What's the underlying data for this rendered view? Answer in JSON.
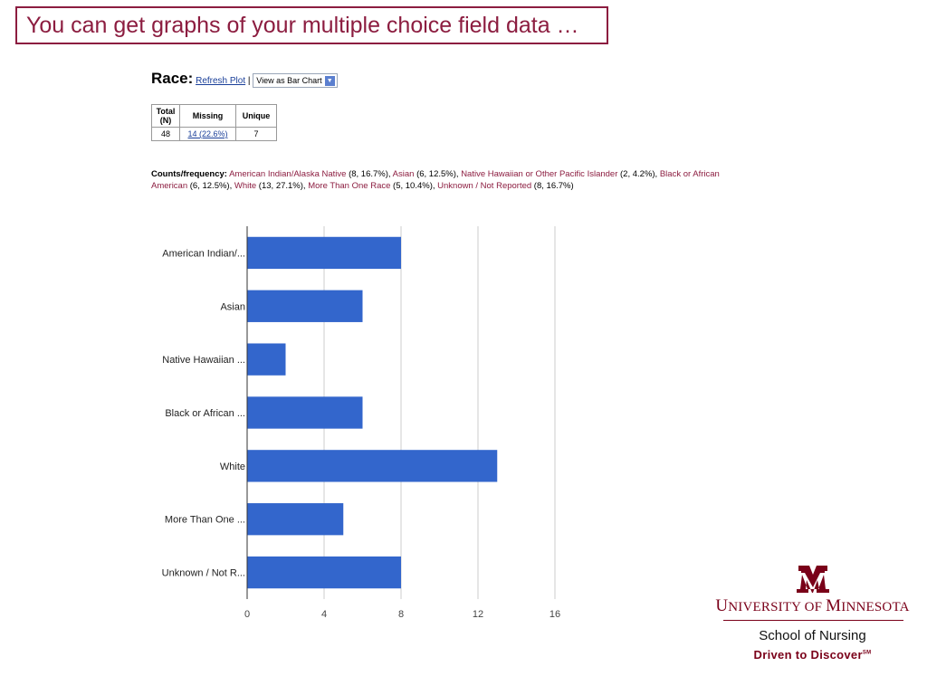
{
  "slide": {
    "title": "You can get graphs of your multiple choice field data …"
  },
  "field": {
    "name": "Race:",
    "refresh_label": "Refresh Plot",
    "separator": "|",
    "view_option": "View as Bar Chart"
  },
  "stats": {
    "headers": [
      "Total (N)",
      "Missing",
      "Unique"
    ],
    "total": "48",
    "missing": "14 (22.6%)",
    "unique": "7"
  },
  "counts": {
    "label": "Counts/frequency:",
    "items": [
      {
        "category": "American Indian/Alaska Native",
        "value": "(8, 16.7%)",
        "sep": ", "
      },
      {
        "category": "Asian",
        "value": "(6, 12.5%)",
        "sep": ", "
      },
      {
        "category": "Native Hawaiian or Other Pacific Islander",
        "value": "(2, 4.2%)",
        "sep": ", "
      },
      {
        "category": "Black or African American",
        "value": "(6, 12.5%)",
        "sep": ", "
      },
      {
        "category": "White",
        "value": "(13, 27.1%)",
        "sep": ", "
      },
      {
        "category": "More Than One Race",
        "value": "(5, 10.4%)",
        "sep": ", "
      },
      {
        "category": "Unknown / Not Reported",
        "value": "(8, 16.7%)",
        "sep": ""
      }
    ]
  },
  "chart_data": {
    "type": "bar",
    "orientation": "horizontal",
    "categories": [
      "American Indian/...",
      "Asian",
      "Native Hawaiian ...",
      "Black or African ...",
      "White",
      "More Than One ...",
      "Unknown / Not R..."
    ],
    "values": [
      8,
      6,
      2,
      6,
      13,
      5,
      8
    ],
    "xlim": [
      0,
      16
    ],
    "xticks": [
      0,
      4,
      8,
      12,
      16
    ],
    "grid": true,
    "bar_color": "#3366cc",
    "grid_color": "#cccccc"
  },
  "logo": {
    "university_parts": [
      "U",
      "NIVERSITY OF ",
      "M",
      "INNESOTA"
    ],
    "school": "School of Nursing",
    "tagline": "Driven to Discover",
    "tagline_mark": "SM",
    "brand_color": "#7a0019"
  }
}
